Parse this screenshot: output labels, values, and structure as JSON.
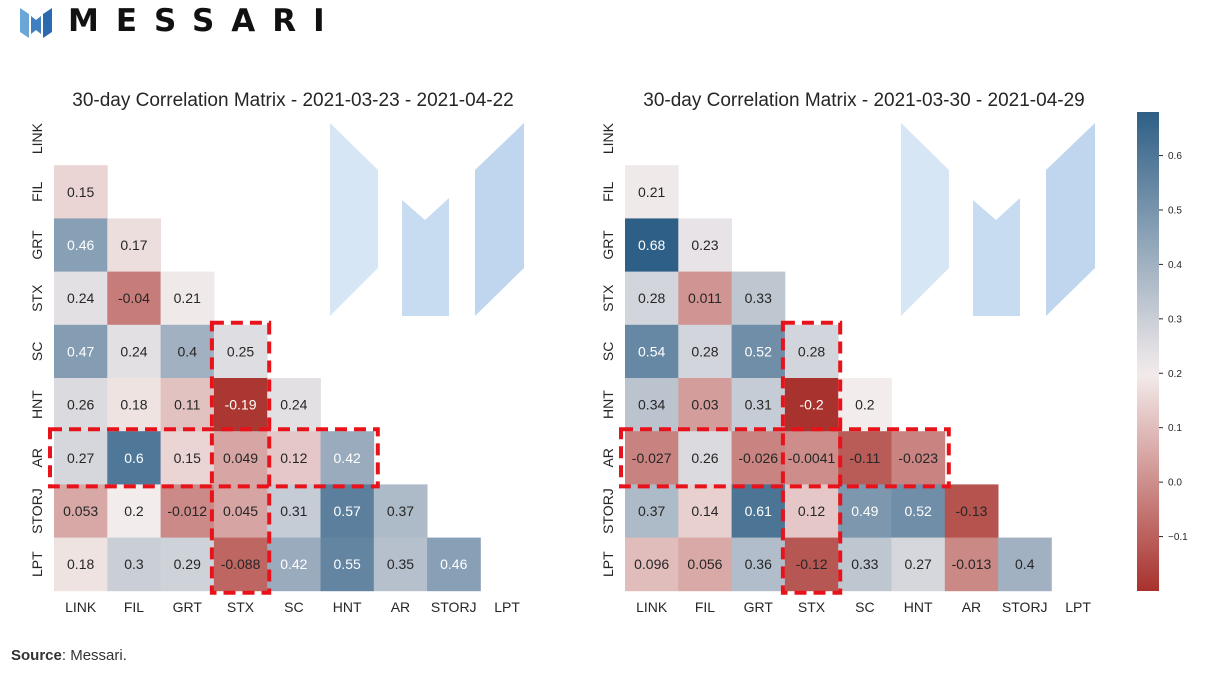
{
  "header": {
    "brand_name": "MESSARI",
    "logo_icon": "messari-m-logo-icon"
  },
  "footer": {
    "source_label": "Source",
    "source_text": ": Messari."
  },
  "chart_data": [
    {
      "type": "heatmap",
      "title": "30-day Correlation Matrix - 2021-03-23 - 2021-04-22",
      "labels": [
        "LINK",
        "FIL",
        "GRT",
        "STX",
        "SC",
        "HNT",
        "AR",
        "STORJ",
        "LPT"
      ],
      "matrix": [
        [],
        [
          "0.15"
        ],
        [
          "0.46",
          "0.17"
        ],
        [
          "0.24",
          "-0.04",
          "0.21"
        ],
        [
          "0.47",
          "0.24",
          "0.4",
          "0.25"
        ],
        [
          "0.26",
          "0.18",
          "0.11",
          "-0.19",
          "0.24"
        ],
        [
          "0.27",
          "0.6",
          "0.15",
          "0.049",
          "0.12",
          "0.42"
        ],
        [
          "0.053",
          "0.2",
          "-0.012",
          "0.045",
          "0.31",
          "0.57",
          "0.37"
        ],
        [
          "0.18",
          "0.3",
          "0.29",
          "-0.088",
          "0.42",
          "0.55",
          "0.35",
          "0.46"
        ]
      ],
      "highlight_column": "STX",
      "highlight_row": "AR",
      "watermark_icon": "messari-m-watermark-icon"
    },
    {
      "type": "heatmap",
      "title": "30-day Correlation Matrix - 2021-03-30 - 2021-04-29",
      "labels": [
        "LINK",
        "FIL",
        "GRT",
        "STX",
        "SC",
        "HNT",
        "AR",
        "STORJ",
        "LPT"
      ],
      "matrix": [
        [],
        [
          "0.21"
        ],
        [
          "0.68",
          "0.23"
        ],
        [
          "0.28",
          "0.011",
          "0.33"
        ],
        [
          "0.54",
          "0.28",
          "0.52",
          "0.28"
        ],
        [
          "0.34",
          "0.03",
          "0.31",
          "-0.2",
          "0.2"
        ],
        [
          "-0.027",
          "0.26",
          "-0.026",
          "-0.0041",
          "-0.11",
          "-0.023"
        ],
        [
          "0.37",
          "0.14",
          "0.61",
          "0.12",
          "0.49",
          "0.52",
          "-0.13"
        ],
        [
          "0.096",
          "0.056",
          "0.36",
          "-0.12",
          "0.33",
          "0.27",
          "-0.013",
          "0.4"
        ]
      ],
      "highlight_column": "STX",
      "highlight_row": "AR",
      "watermark_icon": "messari-m-watermark-icon"
    }
  ],
  "colorbar": {
    "vmin": -0.2,
    "vmax": 0.68,
    "center": 0.2,
    "ticks": [
      -0.1,
      0.0,
      0.1,
      0.2,
      0.3,
      0.4,
      0.5,
      0.6
    ],
    "tick_labels": [
      "−0.1",
      "0.0",
      "0.1",
      "0.2",
      "0.3",
      "0.4",
      "0.5",
      "0.6"
    ],
    "color_low": "#a8322d",
    "color_mid": "#f3ecec",
    "color_high": "#2e5f86",
    "highlight_color": "#e8121b"
  }
}
